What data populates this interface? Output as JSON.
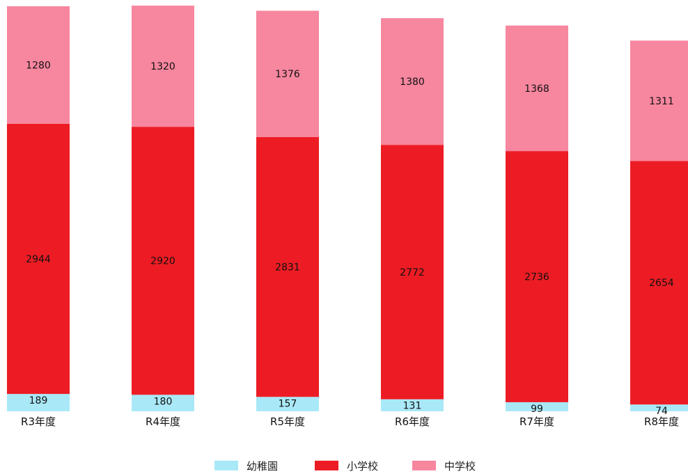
{
  "chart_data": {
    "type": "bar",
    "stacked": true,
    "categories": [
      "R3年度",
      "R4年度",
      "R5年度",
      "R6年度",
      "R7年度",
      "R8年度"
    ],
    "series": [
      {
        "name": "幼稚園",
        "values": [
          189,
          180,
          157,
          131,
          99,
          74
        ],
        "color": "#a9e8f7"
      },
      {
        "name": "小学校",
        "values": [
          2944,
          2920,
          2831,
          2772,
          2736,
          2654
        ],
        "color": "#ed1c24"
      },
      {
        "name": "中学校",
        "values": [
          1280,
          1320,
          1376,
          1380,
          1368,
          1311
        ],
        "color": "#f7869f"
      }
    ],
    "title": "",
    "xlabel": "",
    "ylabel": "",
    "data_labels": true,
    "grid": false,
    "legend": "bottom-center"
  }
}
